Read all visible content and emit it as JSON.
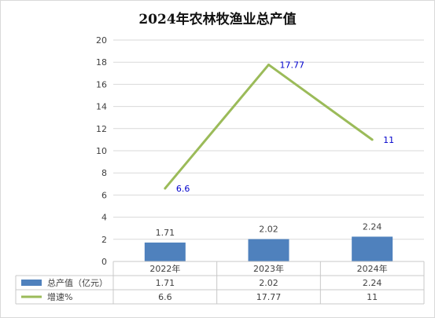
{
  "chart_data": {
    "type": "bar",
    "title": "2024年农林牧渔业总产值",
    "categories": [
      "2022年",
      "2023年",
      "2024年"
    ],
    "series": [
      {
        "name": "总产值（亿元）",
        "type": "bar",
        "values": [
          1.71,
          2.02,
          2.24
        ],
        "labels": [
          "1.71",
          "2.02",
          "2.24"
        ],
        "color": "#4f81bd"
      },
      {
        "name": "增速%",
        "type": "line",
        "values": [
          6.6,
          17.77,
          11
        ],
        "labels": [
          "6.6",
          "17.77",
          "11"
        ],
        "color": "#9bbb59"
      }
    ],
    "y_ticks": [
      "0",
      "2",
      "4",
      "6",
      "8",
      "10",
      "12",
      "14",
      "16",
      "18",
      "20"
    ],
    "ylim": [
      0,
      20
    ],
    "grid": true,
    "legend": "data-table"
  }
}
